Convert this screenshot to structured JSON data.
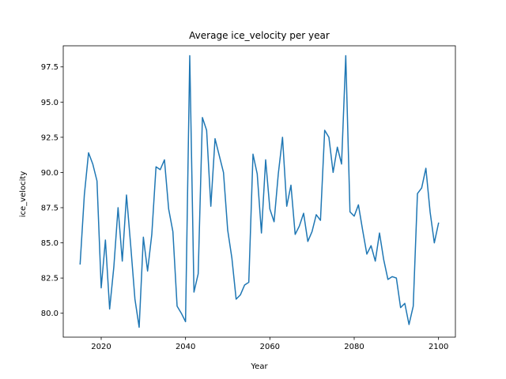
{
  "chart_data": {
    "type": "line",
    "title": "Average ice_velocity per year",
    "xlabel": "Year",
    "ylabel": "ice_velocity",
    "xlim": [
      2011,
      2104
    ],
    "ylim": [
      78.3,
      99.0
    ],
    "xticks": [
      2020,
      2040,
      2060,
      2080,
      2100
    ],
    "yticks": [
      80.0,
      82.5,
      85.0,
      87.5,
      90.0,
      92.5,
      95.0,
      97.5
    ],
    "ytick_labels": [
      "80.0",
      "82.5",
      "85.0",
      "87.5",
      "90.0",
      "92.5",
      "95.0",
      "97.5"
    ],
    "grid": false,
    "line_color": "#1f77b4",
    "series": [
      {
        "x": [
          2015,
          2016,
          2017,
          2018,
          2019,
          2020,
          2021,
          2022,
          2023,
          2024,
          2025,
          2026,
          2027,
          2028,
          2029,
          2030,
          2031,
          2032,
          2033,
          2034,
          2035,
          2036,
          2037,
          2038,
          2039,
          2040,
          2041,
          2042,
          2043,
          2044,
          2045,
          2046,
          2047,
          2048,
          2049,
          2050,
          2051,
          2052,
          2053,
          2054,
          2055,
          2056,
          2057,
          2058,
          2059,
          2060,
          2061,
          2062,
          2063,
          2064,
          2065,
          2066,
          2067,
          2068,
          2069,
          2070,
          2071,
          2072,
          2073,
          2074,
          2075,
          2076,
          2077,
          2078,
          2079,
          2080,
          2081,
          2082,
          2083,
          2084,
          2085,
          2086,
          2087,
          2088,
          2089,
          2090,
          2091,
          2092,
          2093,
          2094,
          2095,
          2096,
          2097,
          2098,
          2099,
          2100
        ],
        "values": [
          83.5,
          88.4,
          91.4,
          90.6,
          89.4,
          81.8,
          85.2,
          80.3,
          83.3,
          87.5,
          83.7,
          88.4,
          84.8,
          81.0,
          79.0,
          85.4,
          83.0,
          85.6,
          90.4,
          90.2,
          90.9,
          87.4,
          85.8,
          80.5,
          80.0,
          79.4,
          98.3,
          81.5,
          82.8,
          93.9,
          93.0,
          87.6,
          92.4,
          91.2,
          90.0,
          85.9,
          83.9,
          81.0,
          81.3,
          82.0,
          82.2,
          91.3,
          89.9,
          85.7,
          90.9,
          87.4,
          86.5,
          89.9,
          92.5,
          87.6,
          89.1,
          85.6,
          86.2,
          87.1,
          85.1,
          85.8,
          87.0,
          86.6,
          93.0,
          92.5,
          90.0,
          91.8,
          90.6,
          98.3,
          87.2,
          86.9,
          87.7,
          85.9,
          84.2,
          84.8,
          83.7,
          85.7,
          83.8,
          82.4,
          82.6,
          82.5,
          80.4,
          80.7,
          79.2,
          80.5,
          88.5,
          88.9,
          90.3,
          87.2,
          85.0,
          86.4
        ]
      }
    ]
  }
}
